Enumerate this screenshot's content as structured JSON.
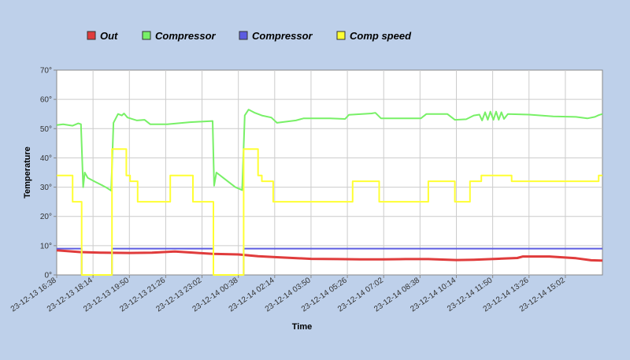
{
  "chart_data": {
    "type": "line",
    "title": "",
    "xlabel": "Time",
    "ylabel": "Temperature",
    "ylim": [
      0,
      70
    ],
    "y_ticks": [
      "0°",
      "10°",
      "20°",
      "30°",
      "40°",
      "50°",
      "60°",
      "70°"
    ],
    "x_range": [
      "23-12-13 16:38",
      "23-12-14 16:40"
    ],
    "x_ticks": [
      "23-12-13 16:38",
      "23-12-13 18:14",
      "23-12-13 19:50",
      "23-12-13 21:26",
      "23-12-13 23:02",
      "23-12-14 00:38",
      "23-12-14 02:14",
      "23-12-14 03:50",
      "23-12-14 05:26",
      "23-12-14 07:02",
      "23-12-14 08:38",
      "23-12-14 10:14",
      "23-12-14 11:50",
      "23-12-14 13:26",
      "23-12-14 15:02"
    ],
    "grid": true,
    "legend_position": "top",
    "series": [
      {
        "name": "Out",
        "color": "#e03c3c",
        "line_width": 3,
        "points": [
          [
            "23-12-13 16:38",
            8.4
          ],
          [
            "23-12-13 17:40",
            7.8
          ],
          [
            "23-12-13 18:40",
            7.6
          ],
          [
            "23-12-13 19:50",
            7.5
          ],
          [
            "23-12-13 20:50",
            7.6
          ],
          [
            "23-12-13 21:50",
            8.0
          ],
          [
            "23-12-13 22:40",
            7.6
          ],
          [
            "23-12-13 23:30",
            7.2
          ],
          [
            "23-12-14 00:38",
            7.0
          ],
          [
            "23-12-14 01:30",
            6.4
          ],
          [
            "23-12-14 02:30",
            6.0
          ],
          [
            "23-12-14 03:50",
            5.5
          ],
          [
            "23-12-14 05:00",
            5.4
          ],
          [
            "23-12-14 06:00",
            5.3
          ],
          [
            "23-12-14 07:02",
            5.3
          ],
          [
            "23-12-14 08:00",
            5.4
          ],
          [
            "23-12-14 09:00",
            5.4
          ],
          [
            "23-12-14 10:14",
            5.1
          ],
          [
            "23-12-14 11:00",
            5.2
          ],
          [
            "23-12-14 12:00",
            5.5
          ],
          [
            "23-12-14 12:55",
            5.8
          ],
          [
            "23-12-14 13:10",
            6.3
          ],
          [
            "23-12-14 14:20",
            6.3
          ],
          [
            "23-12-14 15:30",
            5.7
          ],
          [
            "23-12-14 16:10",
            5.0
          ],
          [
            "23-12-14 16:40",
            4.9
          ]
        ]
      },
      {
        "name": "Compressor",
        "color": "#78f067",
        "line_width": 2,
        "points": [
          [
            "23-12-13 16:38",
            51.2
          ],
          [
            "23-12-13 16:55",
            51.5
          ],
          [
            "23-12-13 17:20",
            51.0
          ],
          [
            "23-12-13 17:35",
            51.8
          ],
          [
            "23-12-13 17:42",
            51.5
          ],
          [
            "23-12-13 17:48",
            30.0
          ],
          [
            "23-12-13 17:52",
            35.0
          ],
          [
            "23-12-13 18:00",
            33.2
          ],
          [
            "23-12-13 18:20",
            31.8
          ],
          [
            "23-12-13 18:40",
            30.5
          ],
          [
            "23-12-13 18:50",
            29.8
          ],
          [
            "23-12-13 19:02",
            28.8
          ],
          [
            "23-12-13 19:08",
            52.0
          ],
          [
            "23-12-13 19:20",
            55.0
          ],
          [
            "23-12-13 19:30",
            54.5
          ],
          [
            "23-12-13 19:36",
            55.2
          ],
          [
            "23-12-13 19:45",
            53.8
          ],
          [
            "23-12-13 20:10",
            52.8
          ],
          [
            "23-12-13 20:30",
            53.0
          ],
          [
            "23-12-13 20:45",
            51.5
          ],
          [
            "23-12-13 21:30",
            51.5
          ],
          [
            "23-12-13 22:30",
            52.2
          ],
          [
            "23-12-13 23:15",
            52.5
          ],
          [
            "23-12-13 23:30",
            52.6
          ],
          [
            "23-12-13 23:34",
            30.5
          ],
          [
            "23-12-13 23:40",
            35.0
          ],
          [
            "23-12-14 00:00",
            33.0
          ],
          [
            "23-12-14 00:30",
            30.0
          ],
          [
            "23-12-14 00:48",
            29.0
          ],
          [
            "23-12-14 00:55",
            54.5
          ],
          [
            "23-12-14 01:05",
            56.5
          ],
          [
            "23-12-14 01:20",
            55.5
          ],
          [
            "23-12-14 01:40",
            54.5
          ],
          [
            "23-12-14 02:05",
            53.8
          ],
          [
            "23-12-14 02:20",
            52.0
          ],
          [
            "23-12-14 03:10",
            52.8
          ],
          [
            "23-12-14 03:30",
            53.5
          ],
          [
            "23-12-14 04:40",
            53.5
          ],
          [
            "23-12-14 05:20",
            53.3
          ],
          [
            "23-12-14 05:30",
            54.7
          ],
          [
            "23-12-14 06:30",
            55.2
          ],
          [
            "23-12-14 06:40",
            55.4
          ],
          [
            "23-12-14 06:55",
            53.5
          ],
          [
            "23-12-14 08:40",
            53.5
          ],
          [
            "23-12-14 08:55",
            55.0
          ],
          [
            "23-12-14 09:50",
            55.0
          ],
          [
            "23-12-14 10:10",
            53.0
          ],
          [
            "23-12-14 10:40",
            53.2
          ],
          [
            "23-12-14 11:00",
            54.5
          ],
          [
            "23-12-14 11:15",
            54.8
          ],
          [
            "23-12-14 11:22",
            52.8
          ],
          [
            "23-12-14 11:30",
            55.6
          ],
          [
            "23-12-14 11:37",
            53.0
          ],
          [
            "23-12-14 11:44",
            55.8
          ],
          [
            "23-12-14 11:52",
            53.0
          ],
          [
            "23-12-14 11:59",
            55.8
          ],
          [
            "23-12-14 12:06",
            53.0
          ],
          [
            "23-12-14 12:13",
            55.6
          ],
          [
            "23-12-14 12:20",
            53.3
          ],
          [
            "23-12-14 12:30",
            55.0
          ],
          [
            "23-12-14 13:26",
            54.8
          ],
          [
            "23-12-14 14:30",
            54.2
          ],
          [
            "23-12-14 15:30",
            54.0
          ],
          [
            "23-12-14 16:00",
            53.5
          ],
          [
            "23-12-14 16:20",
            54.0
          ],
          [
            "23-12-14 16:30",
            54.6
          ],
          [
            "23-12-14 16:40",
            55.0
          ]
        ]
      },
      {
        "name": "Compressor",
        "color": "#5c5ce0",
        "line_width": 2,
        "points": [
          [
            "23-12-13 16:38",
            9.0
          ],
          [
            "23-12-13 17:44",
            9.0
          ],
          [
            "23-12-13 17:44",
            0.0
          ],
          [
            "23-12-13 19:04",
            0.0
          ],
          [
            "23-12-13 19:04",
            9.0
          ],
          [
            "23-12-13 23:32",
            9.0
          ],
          [
            "23-12-13 23:32",
            0.0
          ],
          [
            "23-12-14 00:52",
            0.0
          ],
          [
            "23-12-14 00:52",
            9.0
          ],
          [
            "23-12-14 16:40",
            9.0
          ]
        ]
      },
      {
        "name": "Comp speed",
        "color": "#ffff33",
        "line_width": 2,
        "points": [
          [
            "23-12-13 16:38",
            34.0
          ],
          [
            "23-12-13 17:20",
            34.0
          ],
          [
            "23-12-13 17:20",
            25.0
          ],
          [
            "23-12-13 17:44",
            25.0
          ],
          [
            "23-12-13 17:44",
            0.0
          ],
          [
            "23-12-13 19:04",
            0.0
          ],
          [
            "23-12-13 19:04",
            43.0
          ],
          [
            "23-12-13 19:42",
            43.0
          ],
          [
            "23-12-13 19:42",
            34.0
          ],
          [
            "23-12-13 19:52",
            34.0
          ],
          [
            "23-12-13 19:52",
            32.0
          ],
          [
            "23-12-13 20:12",
            32.0
          ],
          [
            "23-12-13 20:12",
            25.0
          ],
          [
            "23-12-13 21:38",
            25.0
          ],
          [
            "23-12-13 21:38",
            34.0
          ],
          [
            "23-12-13 22:38",
            34.0
          ],
          [
            "23-12-13 22:38",
            25.0
          ],
          [
            "23-12-13 23:32",
            25.0
          ],
          [
            "23-12-13 23:32",
            0.0
          ],
          [
            "23-12-14 00:52",
            0.0
          ],
          [
            "23-12-14 00:52",
            43.0
          ],
          [
            "23-12-14 01:30",
            43.0
          ],
          [
            "23-12-14 01:30",
            34.0
          ],
          [
            "23-12-14 01:40",
            34.0
          ],
          [
            "23-12-14 01:40",
            32.0
          ],
          [
            "23-12-14 02:10",
            32.0
          ],
          [
            "23-12-14 02:10",
            25.0
          ],
          [
            "23-12-14 05:40",
            25.0
          ],
          [
            "23-12-14 05:40",
            32.0
          ],
          [
            "23-12-14 06:50",
            32.0
          ],
          [
            "23-12-14 06:50",
            25.0
          ],
          [
            "23-12-14 09:00",
            25.0
          ],
          [
            "23-12-14 09:00",
            32.0
          ],
          [
            "23-12-14 10:10",
            32.0
          ],
          [
            "23-12-14 10:10",
            25.0
          ],
          [
            "23-12-14 10:50",
            25.0
          ],
          [
            "23-12-14 10:50",
            32.0
          ],
          [
            "23-12-14 11:20",
            32.0
          ],
          [
            "23-12-14 11:20",
            34.0
          ],
          [
            "23-12-14 12:40",
            34.0
          ],
          [
            "23-12-14 12:40",
            32.0
          ],
          [
            "23-12-14 16:30",
            32.0
          ],
          [
            "23-12-14 16:30",
            34.0
          ],
          [
            "23-12-14 16:40",
            34.0
          ]
        ]
      }
    ]
  }
}
